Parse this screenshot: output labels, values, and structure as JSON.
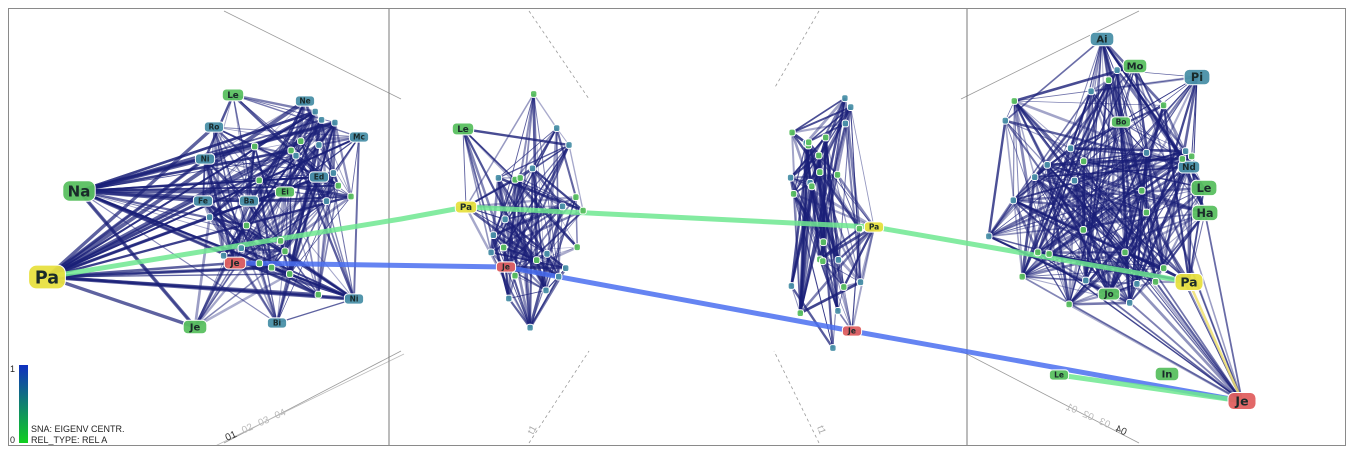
{
  "legend": {
    "scale_max": "1",
    "scale_min": "0",
    "metric_label": "SNA: EIGENV CENTR.",
    "relation_label": "REL_TYPE: REL A",
    "gradient_top": "#1030c0",
    "gradient_bottom": "#10d020"
  },
  "axis": {
    "left_labels": [
      "01",
      "02",
      "03",
      "04"
    ],
    "right_labels": [
      "04",
      "03",
      "02",
      "01"
    ],
    "slice2_label": "t1",
    "slice3_label": "t1"
  },
  "colors": {
    "edge": "#1a1f78",
    "green_path": "#6ee890",
    "blue_path": "#4a6ff0",
    "yellow_path": "#f0e070",
    "node_green": "#5ac060",
    "node_teal": "#4a90a8",
    "node_yellow": "#e8e040",
    "node_red": "#e06060"
  },
  "nodes": {
    "slice1": [
      {
        "label": "Pa",
        "type": "yellow"
      },
      {
        "label": "Na",
        "type": "green"
      },
      {
        "label": "Je",
        "type": "red"
      },
      {
        "label": "Le",
        "type": "green"
      },
      {
        "label": "Ne",
        "type": "teal"
      },
      {
        "label": "Ro",
        "type": "teal"
      },
      {
        "label": "Ni",
        "type": "teal"
      },
      {
        "label": "Je",
        "type": "green"
      },
      {
        "label": "Fe",
        "type": "teal"
      },
      {
        "label": "Mc",
        "type": "teal"
      },
      {
        "label": "Ni",
        "type": "teal"
      },
      {
        "label": "Bi",
        "type": "teal"
      },
      {
        "label": "Ed",
        "type": "teal"
      },
      {
        "label": "Ba",
        "type": "teal"
      },
      {
        "label": "Ei",
        "type": "green"
      }
    ],
    "slice2": [
      {
        "label": "Pa",
        "type": "yellow"
      },
      {
        "label": "Je",
        "type": "red"
      },
      {
        "label": "Le",
        "type": "green"
      }
    ],
    "slice3": [
      {
        "label": "Pa",
        "type": "yellow"
      },
      {
        "label": "Je",
        "type": "red"
      }
    ],
    "slice4": [
      {
        "label": "Pa",
        "type": "yellow"
      },
      {
        "label": "Je",
        "type": "red"
      },
      {
        "label": "Le",
        "type": "green"
      },
      {
        "label": "Ha",
        "type": "green"
      },
      {
        "label": "Pi",
        "type": "teal"
      },
      {
        "label": "Jo",
        "type": "green"
      },
      {
        "label": "Ai",
        "type": "teal"
      },
      {
        "label": "Mo",
        "type": "green"
      },
      {
        "label": "Bo",
        "type": "green"
      },
      {
        "label": "Nd",
        "type": "teal"
      }
    ],
    "isolated": [
      {
        "label": "In",
        "type": "green"
      },
      {
        "label": "Le",
        "type": "green"
      }
    ]
  }
}
